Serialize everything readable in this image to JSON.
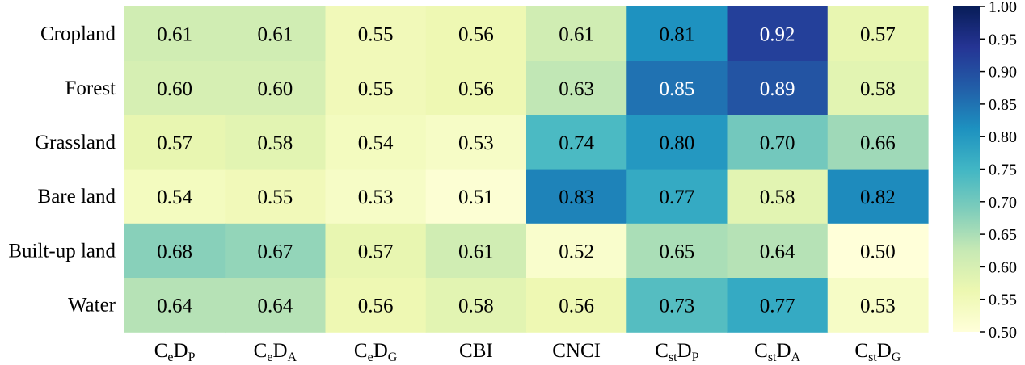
{
  "chart_data": {
    "type": "heatmap",
    "title": "",
    "xlabel": "",
    "ylabel": "",
    "rows": [
      "Cropland",
      "Forest",
      "Grassland",
      "Bare land",
      "Built-up land",
      "Water"
    ],
    "columns": [
      {
        "base": "C",
        "sub1": "e",
        "mid": "D",
        "sub2": "P"
      },
      {
        "base": "C",
        "sub1": "e",
        "mid": "D",
        "sub2": "A"
      },
      {
        "base": "C",
        "sub1": "e",
        "mid": "D",
        "sub2": "G"
      },
      {
        "base": "CBI",
        "sub1": "",
        "mid": "",
        "sub2": ""
      },
      {
        "base": "CNCI",
        "sub1": "",
        "mid": "",
        "sub2": ""
      },
      {
        "base": "C",
        "sub1": "st",
        "mid": "D",
        "sub2": "P"
      },
      {
        "base": "C",
        "sub1": "st",
        "mid": "D",
        "sub2": "A"
      },
      {
        "base": "C",
        "sub1": "st",
        "mid": "D",
        "sub2": "G"
      }
    ],
    "values": [
      [
        0.61,
        0.61,
        0.55,
        0.56,
        0.61,
        0.81,
        0.92,
        0.57
      ],
      [
        0.6,
        0.6,
        0.55,
        0.56,
        0.63,
        0.85,
        0.89,
        0.58
      ],
      [
        0.57,
        0.58,
        0.54,
        0.53,
        0.74,
        0.8,
        0.7,
        0.66
      ],
      [
        0.54,
        0.55,
        0.53,
        0.51,
        0.83,
        0.77,
        0.58,
        0.82
      ],
      [
        0.68,
        0.67,
        0.57,
        0.61,
        0.52,
        0.65,
        0.64,
        0.5
      ],
      [
        0.64,
        0.64,
        0.56,
        0.58,
        0.56,
        0.73,
        0.77,
        0.53
      ]
    ],
    "color_range": [
      0.5,
      1.0
    ],
    "colormap": "YlGnBu",
    "colormap_stops": [
      "#ffffd9",
      "#edf8b1",
      "#c7e9b4",
      "#7fcdbb",
      "#41b6c4",
      "#1d91c0",
      "#225ea8",
      "#253494",
      "#081d58"
    ],
    "light_text_threshold": 0.85,
    "colorbar_ticks": [
      "0.50",
      "0.55",
      "0.60",
      "0.65",
      "0.70",
      "0.75",
      "0.80",
      "0.85",
      "0.90",
      "0.95",
      "1.00"
    ]
  }
}
